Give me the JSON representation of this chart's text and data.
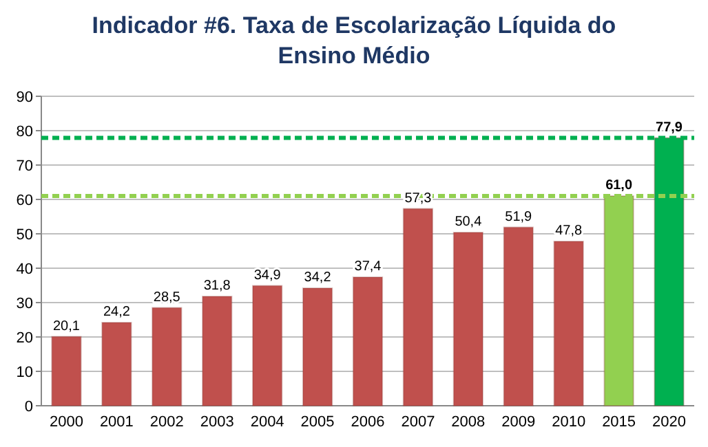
{
  "chart_data": {
    "type": "bar",
    "title": "Indicador #6. Taxa de Escolarização Líquida do Ensino Médio",
    "categories": [
      "2000",
      "2001",
      "2002",
      "2003",
      "2004",
      "2005",
      "2006",
      "2007",
      "2008",
      "2009",
      "2010",
      "2015",
      "2020"
    ],
    "values": [
      20.1,
      24.2,
      28.5,
      31.8,
      34.9,
      34.2,
      37.4,
      57.3,
      50.4,
      51.9,
      47.8,
      61.0,
      77.9
    ],
    "value_labels": [
      "20,1",
      "24,2",
      "28,5",
      "31,8",
      "34,9",
      "34,2",
      "37,4",
      "57,3",
      "50,4",
      "51,9",
      "47,8",
      "61,0",
      "77,9"
    ],
    "colors": [
      "#c0504d",
      "#c0504d",
      "#c0504d",
      "#c0504d",
      "#c0504d",
      "#c0504d",
      "#c0504d",
      "#c0504d",
      "#c0504d",
      "#c0504d",
      "#c0504d",
      "#92d050",
      "#00b050"
    ],
    "ylim": [
      0,
      90
    ],
    "yticks": [
      0,
      10,
      20,
      30,
      40,
      50,
      60,
      70,
      80,
      90
    ],
    "grid": "y",
    "ref_lines": [
      {
        "axis": "y",
        "value": 61.0,
        "color": "#92d050",
        "line_style": "dashed"
      },
      {
        "axis": "y",
        "value": 77.9,
        "color": "#00b050",
        "line_style": "dashed"
      }
    ]
  }
}
